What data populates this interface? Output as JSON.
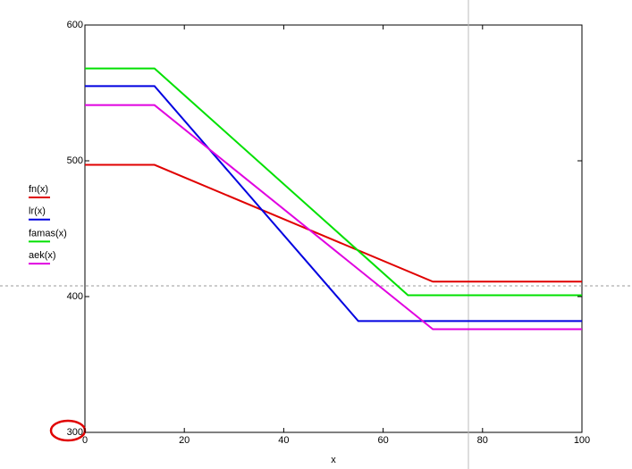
{
  "chart_data": {
    "type": "line",
    "x_label": "x",
    "xlim": [
      0,
      100
    ],
    "xticks": [
      0,
      20,
      40,
      60,
      80,
      100
    ],
    "ylim": [
      300,
      600
    ],
    "yticks": [
      300,
      400,
      500,
      600
    ],
    "series": [
      {
        "name": "fn(x)",
        "color": "#e00000",
        "x": [
          0,
          14,
          70,
          100
        ],
        "values": [
          497,
          497,
          411,
          411
        ]
      },
      {
        "name": "lr(x)",
        "color": "#0000e0",
        "x": [
          0,
          14,
          55,
          100
        ],
        "values": [
          555,
          555,
          382,
          382
        ]
      },
      {
        "name": "famas(x)",
        "color": "#00e000",
        "x": [
          0,
          14,
          65,
          100
        ],
        "values": [
          568,
          568,
          401,
          401
        ]
      },
      {
        "name": "aek(x)",
        "color": "#e000e0",
        "x": [
          0,
          14,
          70,
          100
        ],
        "values": [
          541,
          541,
          376,
          376
        ]
      }
    ]
  }
}
